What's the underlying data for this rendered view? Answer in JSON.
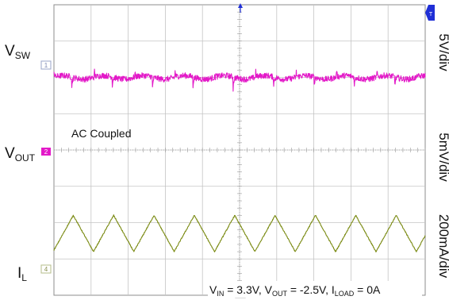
{
  "chart_data": {
    "type": "line",
    "grid": true,
    "divisions": {
      "horizontal": 10,
      "vertical": 8
    },
    "annotation_ac": "AC Coupled",
    "conditions": {
      "vin_prefix": "V",
      "vin_sub": "IN",
      "vin_value": " = 3.3V, ",
      "vout_prefix": "V",
      "vout_sub": "OUT",
      "vout_value": " = -2.5V, ",
      "iload_prefix": "I",
      "iload_sub": "LOAD",
      "iload_value": " = 0A"
    },
    "series": [
      {
        "key": "vsw",
        "name_main": "V",
        "name_sub": "SW",
        "scale": "5V/div",
        "color": "#1f2fd6",
        "marker": "1",
        "shape": "square",
        "periods": 9.2,
        "phase": 0.02,
        "duty": 0.45,
        "high_div": 1.0,
        "low_div": -0.3,
        "noise_div": 0.05,
        "baseline_div": 5.15
      },
      {
        "key": "vout",
        "name_main": "V",
        "name_sub": "OUT",
        "scale": "5mV/div",
        "color": "#e319c8",
        "marker": "2",
        "shape": "ripple",
        "periods": 9.2,
        "phase": 0.02,
        "spike_div": -0.35,
        "noise_div": 0.08,
        "baseline_div": 2.0
      },
      {
        "key": "il",
        "name_main": "I",
        "name_sub": "L",
        "scale": "200mA/div",
        "color": "#7a8a12",
        "marker": "4",
        "shape": "triangle",
        "periods": 9.2,
        "phase": 0.02,
        "amp_div": 0.5,
        "baseline_div": -2.3
      }
    ]
  }
}
